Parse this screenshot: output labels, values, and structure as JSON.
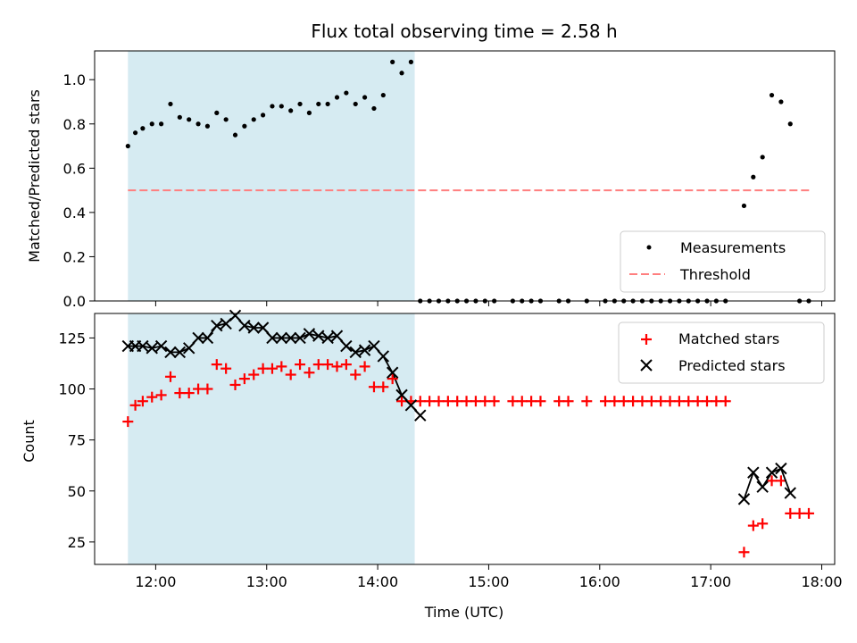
{
  "chart_data": [
    {
      "type": "scatter",
      "title": "Flux total observing time = 2.58 h",
      "xlabel": "",
      "ylabel": "Matched/Predicted stars",
      "xlim": [
        "11:27",
        "18:07"
      ],
      "ylim": [
        0.0,
        1.13
      ],
      "x_ticks": [
        "12:00",
        "13:00",
        "14:00",
        "15:00",
        "16:00",
        "17:00",
        "18:00"
      ],
      "y_ticks": [
        "0.0",
        "0.2",
        "0.4",
        "0.6",
        "0.8",
        "1.0"
      ],
      "shaded_span": {
        "x": [
          "11:45",
          "14:20"
        ],
        "color": "#add8e6"
      },
      "threshold": {
        "name": "Threshold",
        "y": 0.5,
        "x": [
          "11:45",
          "17:55"
        ],
        "color": "#ff7f7f",
        "style": "dashed"
      },
      "legend": {
        "placement": "lower right",
        "entries": [
          "Measurements",
          "Threshold"
        ]
      },
      "series": [
        {
          "name": "Measurements",
          "marker": "dot",
          "color": "#000000",
          "points": [
            [
              "11:45",
              0.7
            ],
            [
              "11:49",
              0.76
            ],
            [
              "11:53",
              0.78
            ],
            [
              "11:58",
              0.8
            ],
            [
              "12:03",
              0.8
            ],
            [
              "12:08",
              0.89
            ],
            [
              "12:13",
              0.83
            ],
            [
              "12:18",
              0.82
            ],
            [
              "12:23",
              0.8
            ],
            [
              "12:28",
              0.79
            ],
            [
              "12:33",
              0.85
            ],
            [
              "12:38",
              0.82
            ],
            [
              "12:43",
              0.75
            ],
            [
              "12:48",
              0.79
            ],
            [
              "12:53",
              0.82
            ],
            [
              "12:58",
              0.84
            ],
            [
              "13:03",
              0.88
            ],
            [
              "13:08",
              0.88
            ],
            [
              "13:13",
              0.86
            ],
            [
              "13:18",
              0.89
            ],
            [
              "13:23",
              0.85
            ],
            [
              "13:28",
              0.89
            ],
            [
              "13:33",
              0.89
            ],
            [
              "13:38",
              0.92
            ],
            [
              "13:43",
              0.94
            ],
            [
              "13:48",
              0.89
            ],
            [
              "13:53",
              0.92
            ],
            [
              "13:58",
              0.87
            ],
            [
              "14:03",
              0.93
            ],
            [
              "14:08",
              1.08
            ],
            [
              "14:13",
              1.03
            ],
            [
              "14:18",
              1.08
            ],
            [
              "14:23",
              0.0
            ],
            [
              "14:28",
              0.0
            ],
            [
              "14:33",
              0.0
            ],
            [
              "14:38",
              0.0
            ],
            [
              "14:43",
              0.0
            ],
            [
              "14:48",
              0.0
            ],
            [
              "14:53",
              0.0
            ],
            [
              "14:58",
              0.0
            ],
            [
              "15:03",
              0.0
            ],
            [
              "15:13",
              0.0
            ],
            [
              "15:18",
              0.0
            ],
            [
              "15:23",
              0.0
            ],
            [
              "15:28",
              0.0
            ],
            [
              "15:38",
              0.0
            ],
            [
              "15:43",
              0.0
            ],
            [
              "15:53",
              0.0
            ],
            [
              "16:03",
              0.0
            ],
            [
              "16:08",
              0.0
            ],
            [
              "16:13",
              0.0
            ],
            [
              "16:18",
              0.0
            ],
            [
              "16:23",
              0.0
            ],
            [
              "16:28",
              0.0
            ],
            [
              "16:33",
              0.0
            ],
            [
              "16:38",
              0.0
            ],
            [
              "16:43",
              0.0
            ],
            [
              "16:48",
              0.0
            ],
            [
              "16:53",
              0.0
            ],
            [
              "16:58",
              0.0
            ],
            [
              "17:03",
              0.0
            ],
            [
              "17:08",
              0.0
            ],
            [
              "17:18",
              0.43
            ],
            [
              "17:23",
              0.56
            ],
            [
              "17:28",
              0.65
            ],
            [
              "17:33",
              0.93
            ],
            [
              "17:38",
              0.9
            ],
            [
              "17:43",
              0.8
            ],
            [
              "17:48",
              0.0
            ],
            [
              "17:53",
              0.0
            ]
          ]
        }
      ]
    },
    {
      "type": "scatter",
      "title": "",
      "xlabel": "Time (UTC)",
      "ylabel": "Count",
      "xlim": [
        "11:27",
        "18:07"
      ],
      "ylim": [
        14,
        137
      ],
      "x_ticks": [
        "12:00",
        "13:00",
        "14:00",
        "15:00",
        "16:00",
        "17:00",
        "18:00"
      ],
      "y_ticks": [
        "25",
        "50",
        "75",
        "100",
        "125"
      ],
      "shaded_span": {
        "x": [
          "11:45",
          "14:20"
        ],
        "color": "#add8e6"
      },
      "legend": {
        "placement": "upper right",
        "entries": [
          "Matched stars",
          "Predicted stars"
        ]
      },
      "series": [
        {
          "name": "Matched stars",
          "marker": "plus",
          "color": "#ff0000",
          "points": [
            [
              "11:45",
              84
            ],
            [
              "11:49",
              92
            ],
            [
              "11:53",
              94
            ],
            [
              "11:58",
              96
            ],
            [
              "12:03",
              97
            ],
            [
              "12:08",
              106
            ],
            [
              "12:13",
              98
            ],
            [
              "12:18",
              98
            ],
            [
              "12:23",
              100
            ],
            [
              "12:28",
              100
            ],
            [
              "12:33",
              112
            ],
            [
              "12:38",
              110
            ],
            [
              "12:43",
              102
            ],
            [
              "12:48",
              105
            ],
            [
              "12:53",
              107
            ],
            [
              "12:58",
              110
            ],
            [
              "13:03",
              110
            ],
            [
              "13:08",
              111
            ],
            [
              "13:13",
              107
            ],
            [
              "13:18",
              112
            ],
            [
              "13:23",
              108
            ],
            [
              "13:28",
              112
            ],
            [
              "13:33",
              112
            ],
            [
              "13:38",
              111
            ],
            [
              "13:43",
              112
            ],
            [
              "13:48",
              107
            ],
            [
              "13:53",
              111
            ],
            [
              "13:58",
              101
            ],
            [
              "14:03",
              101
            ],
            [
              "14:08",
              105
            ],
            [
              "14:13",
              94
            ],
            [
              "14:18",
              94
            ],
            [
              "14:23",
              94
            ],
            [
              "14:28",
              94
            ],
            [
              "14:33",
              94
            ],
            [
              "14:38",
              94
            ],
            [
              "14:43",
              94
            ],
            [
              "14:48",
              94
            ],
            [
              "14:53",
              94
            ],
            [
              "14:58",
              94
            ],
            [
              "15:03",
              94
            ],
            [
              "15:13",
              94
            ],
            [
              "15:18",
              94
            ],
            [
              "15:23",
              94
            ],
            [
              "15:28",
              94
            ],
            [
              "15:38",
              94
            ],
            [
              "15:43",
              94
            ],
            [
              "15:53",
              94
            ],
            [
              "16:03",
              94
            ],
            [
              "16:08",
              94
            ],
            [
              "16:13",
              94
            ],
            [
              "16:18",
              94
            ],
            [
              "16:23",
              94
            ],
            [
              "16:28",
              94
            ],
            [
              "16:33",
              94
            ],
            [
              "16:38",
              94
            ],
            [
              "16:43",
              94
            ],
            [
              "16:48",
              94
            ],
            [
              "16:53",
              94
            ],
            [
              "16:58",
              94
            ],
            [
              "17:03",
              94
            ],
            [
              "17:08",
              94
            ],
            [
              "17:18",
              20
            ],
            [
              "17:23",
              33
            ],
            [
              "17:28",
              34
            ],
            [
              "17:33",
              55
            ],
            [
              "17:38",
              55
            ],
            [
              "17:43",
              39
            ],
            [
              "17:48",
              39
            ],
            [
              "17:53",
              39
            ]
          ]
        },
        {
          "name": "Predicted stars",
          "marker": "x",
          "color": "#000000",
          "points": [
            [
              "11:45",
              121
            ],
            [
              "11:49",
              121
            ],
            [
              "11:53",
              121
            ],
            [
              "11:58",
              120
            ],
            [
              "12:03",
              121
            ],
            [
              "12:08",
              118
            ],
            [
              "12:13",
              118
            ],
            [
              "12:18",
              120
            ],
            [
              "12:23",
              125
            ],
            [
              "12:28",
              125
            ],
            [
              "12:33",
              131
            ],
            [
              "12:38",
              132
            ],
            [
              "12:43",
              136
            ],
            [
              "12:48",
              131
            ],
            [
              "12:53",
              130
            ],
            [
              "12:58",
              130
            ],
            [
              "13:03",
              125
            ],
            [
              "13:08",
              125
            ],
            [
              "13:13",
              125
            ],
            [
              "13:18",
              125
            ],
            [
              "13:23",
              127
            ],
            [
              "13:28",
              126
            ],
            [
              "13:33",
              125
            ],
            [
              "13:38",
              126
            ],
            [
              "13:43",
              121
            ],
            [
              "13:48",
              118
            ],
            [
              "13:53",
              119
            ],
            [
              "13:58",
              121
            ],
            [
              "14:03",
              116
            ],
            [
              "14:08",
              108
            ],
            [
              "14:13",
              97
            ],
            [
              "14:18",
              92
            ],
            [
              "14:23",
              87
            ],
            [
              "17:18",
              46
            ],
            [
              "17:23",
              59
            ],
            [
              "17:28",
              52
            ],
            [
              "17:33",
              59
            ],
            [
              "17:38",
              61
            ],
            [
              "17:43",
              49
            ]
          ]
        }
      ]
    }
  ]
}
